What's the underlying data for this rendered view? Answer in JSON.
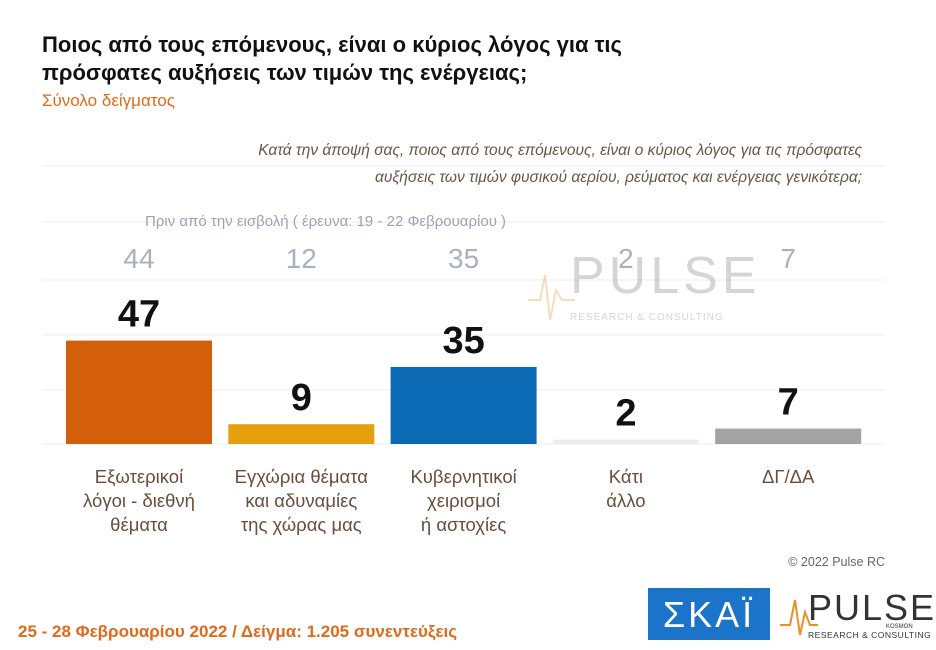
{
  "chart_data": {
    "type": "bar",
    "title": [
      "Ποιος από τους επόμενους, είναι ο κύριος λόγος για τις",
      "πρόσφατες αυξήσεις των τιμών της ενέργειας;"
    ],
    "subtitle": "Σύνολο δείγματος",
    "question": [
      "Κατά την άποψή σας, ποιος από τους επόμενους, είναι ο κύριος λόγος για τις πρόσφατες",
      "αυξήσεις των τιμών φυσικού αερίου, ρεύματος και ενέργειας γενικότερα;"
    ],
    "previous_label": "Πριν από την εισβολή ( έρευνα: 19 - 22 Φεβρουαρίου )",
    "categories": [
      [
        "Εξωτερικοί",
        "λόγοι - διεθνή",
        "θέματα"
      ],
      [
        "Εγχώρια θέματα",
        "και αδυναμίες",
        "της χώρας μας"
      ],
      [
        "Κυβερνητικοί",
        "χειρισμοί",
        "ή αστοχίες"
      ],
      [
        "Κάτι",
        "άλλο"
      ],
      [
        "ΔΓ/ΔΑ"
      ]
    ],
    "values": [
      47,
      9,
      35,
      2,
      7
    ],
    "previous_values": [
      44,
      12,
      35,
      2,
      7
    ],
    "colors": [
      "#d35f0a",
      "#e5a00d",
      "#0b6ab3",
      "#ececec",
      "#a3a3a3"
    ],
    "copyright": "© 2022 Pulse RC",
    "footer": "25 - 28 Φεβρουαρίου  2022  /  Δείγμα:  1.205 συνεντεύξεις",
    "logos": {
      "channel": "ΣΚΑΪ",
      "pulse": "PULSE",
      "pulse_tagline": "RESEARCH & CONSULTING",
      "pulse_mark": "KOSMON"
    }
  }
}
